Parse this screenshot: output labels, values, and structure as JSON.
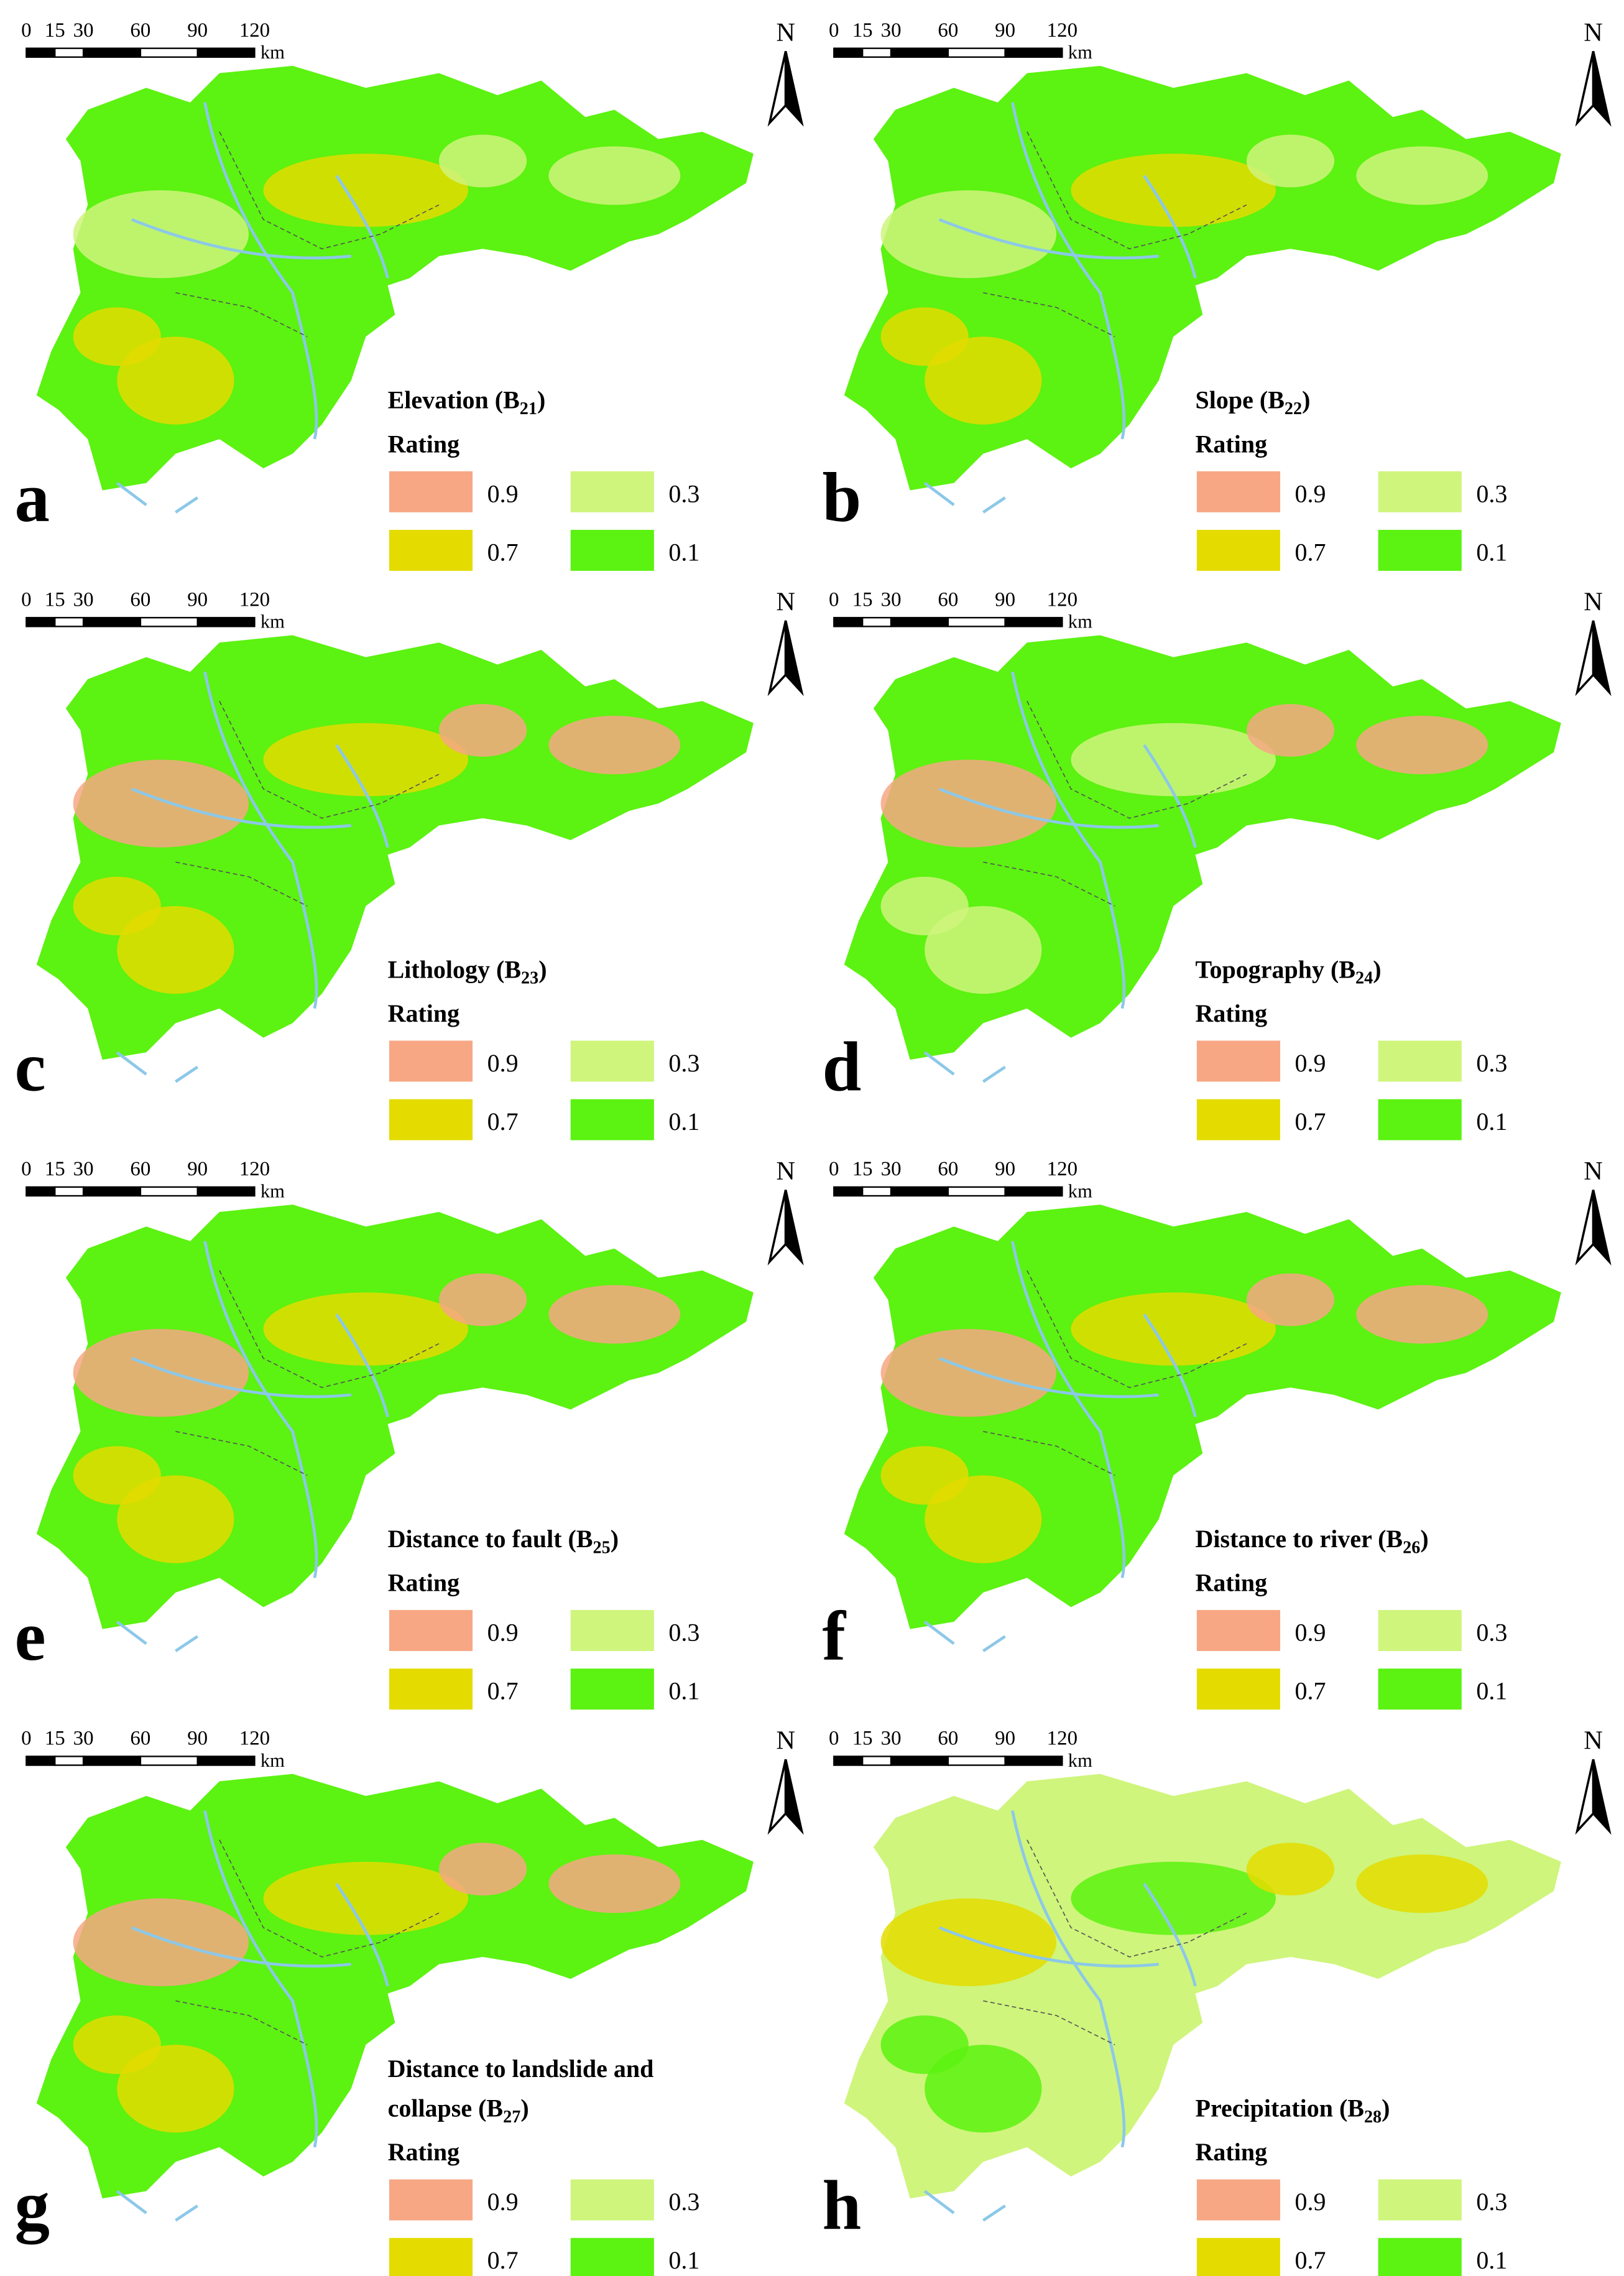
{
  "panels": [
    {
      "letter": "a",
      "title": [
        [
          "Elevation (B",
          "21",
          ")"
        ]
      ]
    },
    {
      "letter": "b",
      "title": [
        [
          "Slope (B",
          "22",
          ")"
        ]
      ]
    },
    {
      "letter": "c",
      "title": [
        [
          "Lithology (B",
          "23",
          ")"
        ]
      ]
    },
    {
      "letter": "d",
      "title": [
        [
          "Topography (B",
          "24",
          ")"
        ]
      ]
    },
    {
      "letter": "e",
      "title": [
        [
          "Distance to fault (B",
          "25",
          ")"
        ]
      ]
    },
    {
      "letter": "f",
      "title": [
        [
          "Distance to river (B",
          "26",
          ")"
        ]
      ]
    },
    {
      "letter": "g",
      "title": [
        [
          "Distance to landslide and"
        ],
        [
          "collapse (B",
          "27",
          ")"
        ]
      ]
    },
    {
      "letter": "h",
      "title": [
        [
          "Precipitation (B",
          "28",
          ")"
        ]
      ]
    }
  ],
  "legend_title": "Rating",
  "legend": [
    {
      "label": 0.9,
      "color": "#f7a784"
    },
    {
      "label": 0.3,
      "color": "#cff57c"
    },
    {
      "label": 0.7,
      "color": "#e4dc00"
    },
    {
      "label": 0.1,
      "color": "#5cf211"
    }
  ],
  "scale_bar": {
    "ticks": [
      0,
      15,
      30,
      60,
      90,
      120
    ],
    "unit": "km"
  },
  "north": "N"
}
